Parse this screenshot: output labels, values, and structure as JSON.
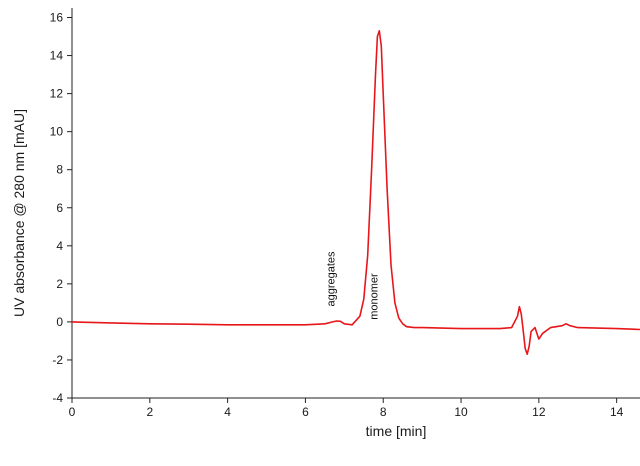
{
  "chart_data": {
    "type": "line",
    "title": "",
    "xlabel": "time [min]",
    "ylabel": "UV absorbance @ 280 nm [mAU]",
    "xlim": [
      0,
      14.6
    ],
    "ylim": [
      -4,
      16.5
    ],
    "x_ticks": [
      0,
      2,
      4,
      6,
      8,
      10,
      12,
      14
    ],
    "y_ticks": [
      -4,
      -2,
      0,
      2,
      4,
      6,
      8,
      10,
      12,
      14,
      16
    ],
    "grid": false,
    "legend": "none",
    "line_color": "#e8161b",
    "series": [
      {
        "x": [
          0,
          1,
          2,
          3,
          4,
          5,
          6,
          6.5,
          6.7,
          6.8,
          6.9,
          7.0,
          7.2,
          7.4,
          7.5,
          7.6,
          7.7,
          7.8,
          7.85,
          7.9,
          7.95,
          8.0,
          8.1,
          8.2,
          8.3,
          8.4,
          8.5,
          8.6,
          8.8,
          9.0,
          10,
          11,
          11.3,
          11.45,
          11.5,
          11.55,
          11.6,
          11.65,
          11.7,
          11.75,
          11.8,
          11.9,
          12.0,
          12.1,
          12.3,
          12.6,
          12.7,
          12.8,
          13,
          14,
          14.6
        ],
        "y": [
          0.0,
          -0.05,
          -0.1,
          -0.12,
          -0.15,
          -0.15,
          -0.15,
          -0.1,
          0.0,
          0.05,
          0.03,
          -0.1,
          -0.15,
          0.3,
          1.2,
          3.5,
          8.0,
          13.0,
          15.0,
          15.3,
          14.5,
          12.0,
          7.0,
          3.0,
          1.0,
          0.2,
          -0.1,
          -0.25,
          -0.3,
          -0.3,
          -0.35,
          -0.35,
          -0.3,
          0.3,
          0.8,
          0.4,
          -0.5,
          -1.4,
          -1.7,
          -1.3,
          -0.5,
          -0.3,
          -0.9,
          -0.6,
          -0.3,
          -0.2,
          -0.1,
          -0.2,
          -0.3,
          -0.35,
          -0.4
        ]
      }
    ],
    "annotations": [
      {
        "text": "aggregates",
        "x": 6.75,
        "y": 0.6
      },
      {
        "text": "monomer",
        "x": 7.85,
        "y": -0.1
      }
    ]
  }
}
